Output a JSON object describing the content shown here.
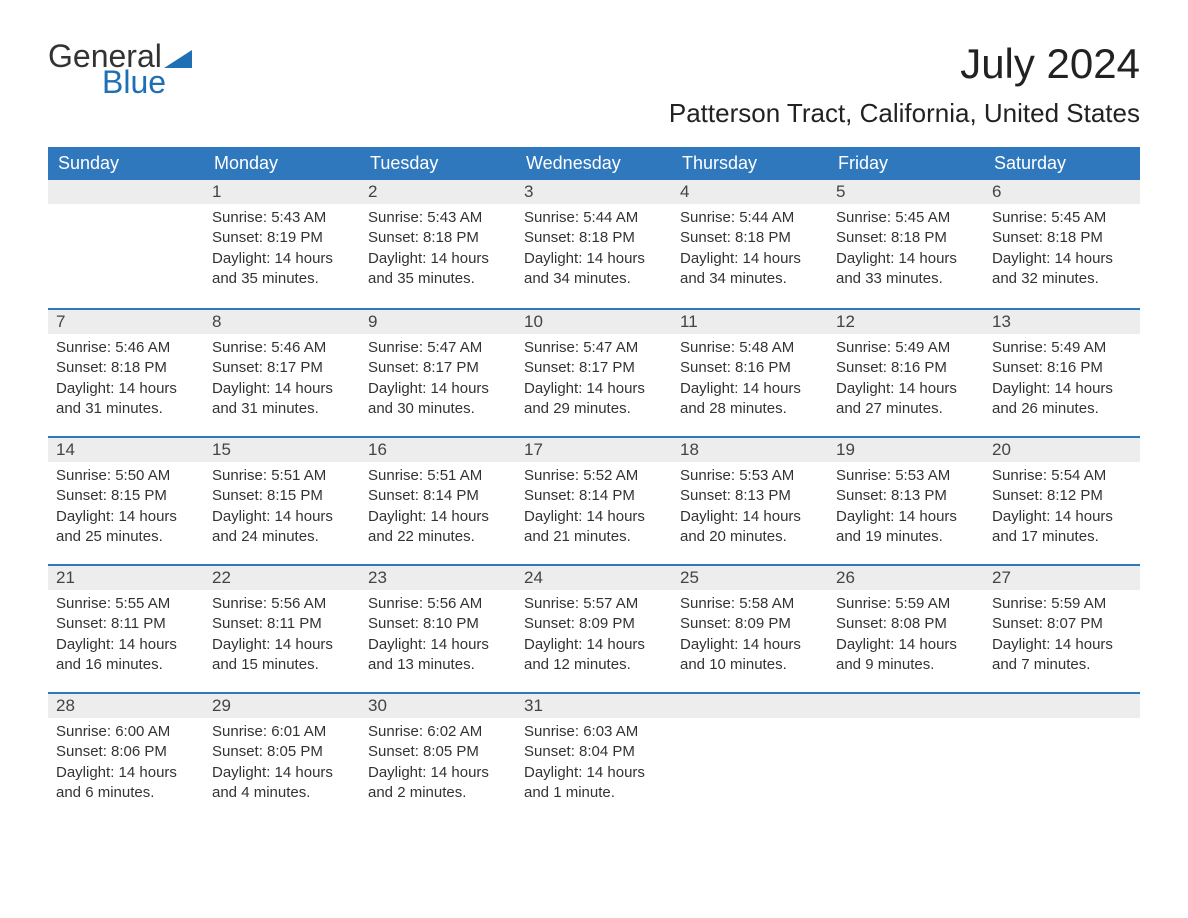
{
  "logo": {
    "word1": "General",
    "word2": "Blue"
  },
  "title": "July 2024",
  "location": "Patterson Tract, California, United States",
  "colors": {
    "header_bg": "#2f78bd",
    "header_text": "#ffffff",
    "daynum_bg": "#ededed",
    "row_divider": "#2f78bd",
    "logo_accent": "#1f6fb5",
    "body_text": "#333333",
    "background": "#ffffff"
  },
  "weekdays": [
    "Sunday",
    "Monday",
    "Tuesday",
    "Wednesday",
    "Thursday",
    "Friday",
    "Saturday"
  ],
  "weeks": [
    [
      null,
      {
        "day": "1",
        "sunrise": "Sunrise: 5:43 AM",
        "sunset": "Sunset: 8:19 PM",
        "daylight": "Daylight: 14 hours and 35 minutes."
      },
      {
        "day": "2",
        "sunrise": "Sunrise: 5:43 AM",
        "sunset": "Sunset: 8:18 PM",
        "daylight": "Daylight: 14 hours and 35 minutes."
      },
      {
        "day": "3",
        "sunrise": "Sunrise: 5:44 AM",
        "sunset": "Sunset: 8:18 PM",
        "daylight": "Daylight: 14 hours and 34 minutes."
      },
      {
        "day": "4",
        "sunrise": "Sunrise: 5:44 AM",
        "sunset": "Sunset: 8:18 PM",
        "daylight": "Daylight: 14 hours and 34 minutes."
      },
      {
        "day": "5",
        "sunrise": "Sunrise: 5:45 AM",
        "sunset": "Sunset: 8:18 PM",
        "daylight": "Daylight: 14 hours and 33 minutes."
      },
      {
        "day": "6",
        "sunrise": "Sunrise: 5:45 AM",
        "sunset": "Sunset: 8:18 PM",
        "daylight": "Daylight: 14 hours and 32 minutes."
      }
    ],
    [
      {
        "day": "7",
        "sunrise": "Sunrise: 5:46 AM",
        "sunset": "Sunset: 8:18 PM",
        "daylight": "Daylight: 14 hours and 31 minutes."
      },
      {
        "day": "8",
        "sunrise": "Sunrise: 5:46 AM",
        "sunset": "Sunset: 8:17 PM",
        "daylight": "Daylight: 14 hours and 31 minutes."
      },
      {
        "day": "9",
        "sunrise": "Sunrise: 5:47 AM",
        "sunset": "Sunset: 8:17 PM",
        "daylight": "Daylight: 14 hours and 30 minutes."
      },
      {
        "day": "10",
        "sunrise": "Sunrise: 5:47 AM",
        "sunset": "Sunset: 8:17 PM",
        "daylight": "Daylight: 14 hours and 29 minutes."
      },
      {
        "day": "11",
        "sunrise": "Sunrise: 5:48 AM",
        "sunset": "Sunset: 8:16 PM",
        "daylight": "Daylight: 14 hours and 28 minutes."
      },
      {
        "day": "12",
        "sunrise": "Sunrise: 5:49 AM",
        "sunset": "Sunset: 8:16 PM",
        "daylight": "Daylight: 14 hours and 27 minutes."
      },
      {
        "day": "13",
        "sunrise": "Sunrise: 5:49 AM",
        "sunset": "Sunset: 8:16 PM",
        "daylight": "Daylight: 14 hours and 26 minutes."
      }
    ],
    [
      {
        "day": "14",
        "sunrise": "Sunrise: 5:50 AM",
        "sunset": "Sunset: 8:15 PM",
        "daylight": "Daylight: 14 hours and 25 minutes."
      },
      {
        "day": "15",
        "sunrise": "Sunrise: 5:51 AM",
        "sunset": "Sunset: 8:15 PM",
        "daylight": "Daylight: 14 hours and 24 minutes."
      },
      {
        "day": "16",
        "sunrise": "Sunrise: 5:51 AM",
        "sunset": "Sunset: 8:14 PM",
        "daylight": "Daylight: 14 hours and 22 minutes."
      },
      {
        "day": "17",
        "sunrise": "Sunrise: 5:52 AM",
        "sunset": "Sunset: 8:14 PM",
        "daylight": "Daylight: 14 hours and 21 minutes."
      },
      {
        "day": "18",
        "sunrise": "Sunrise: 5:53 AM",
        "sunset": "Sunset: 8:13 PM",
        "daylight": "Daylight: 14 hours and 20 minutes."
      },
      {
        "day": "19",
        "sunrise": "Sunrise: 5:53 AM",
        "sunset": "Sunset: 8:13 PM",
        "daylight": "Daylight: 14 hours and 19 minutes."
      },
      {
        "day": "20",
        "sunrise": "Sunrise: 5:54 AM",
        "sunset": "Sunset: 8:12 PM",
        "daylight": "Daylight: 14 hours and 17 minutes."
      }
    ],
    [
      {
        "day": "21",
        "sunrise": "Sunrise: 5:55 AM",
        "sunset": "Sunset: 8:11 PM",
        "daylight": "Daylight: 14 hours and 16 minutes."
      },
      {
        "day": "22",
        "sunrise": "Sunrise: 5:56 AM",
        "sunset": "Sunset: 8:11 PM",
        "daylight": "Daylight: 14 hours and 15 minutes."
      },
      {
        "day": "23",
        "sunrise": "Sunrise: 5:56 AM",
        "sunset": "Sunset: 8:10 PM",
        "daylight": "Daylight: 14 hours and 13 minutes."
      },
      {
        "day": "24",
        "sunrise": "Sunrise: 5:57 AM",
        "sunset": "Sunset: 8:09 PM",
        "daylight": "Daylight: 14 hours and 12 minutes."
      },
      {
        "day": "25",
        "sunrise": "Sunrise: 5:58 AM",
        "sunset": "Sunset: 8:09 PM",
        "daylight": "Daylight: 14 hours and 10 minutes."
      },
      {
        "day": "26",
        "sunrise": "Sunrise: 5:59 AM",
        "sunset": "Sunset: 8:08 PM",
        "daylight": "Daylight: 14 hours and 9 minutes."
      },
      {
        "day": "27",
        "sunrise": "Sunrise: 5:59 AM",
        "sunset": "Sunset: 8:07 PM",
        "daylight": "Daylight: 14 hours and 7 minutes."
      }
    ],
    [
      {
        "day": "28",
        "sunrise": "Sunrise: 6:00 AM",
        "sunset": "Sunset: 8:06 PM",
        "daylight": "Daylight: 14 hours and 6 minutes."
      },
      {
        "day": "29",
        "sunrise": "Sunrise: 6:01 AM",
        "sunset": "Sunset: 8:05 PM",
        "daylight": "Daylight: 14 hours and 4 minutes."
      },
      {
        "day": "30",
        "sunrise": "Sunrise: 6:02 AM",
        "sunset": "Sunset: 8:05 PM",
        "daylight": "Daylight: 14 hours and 2 minutes."
      },
      {
        "day": "31",
        "sunrise": "Sunrise: 6:03 AM",
        "sunset": "Sunset: 8:04 PM",
        "daylight": "Daylight: 14 hours and 1 minute."
      },
      null,
      null,
      null
    ]
  ]
}
